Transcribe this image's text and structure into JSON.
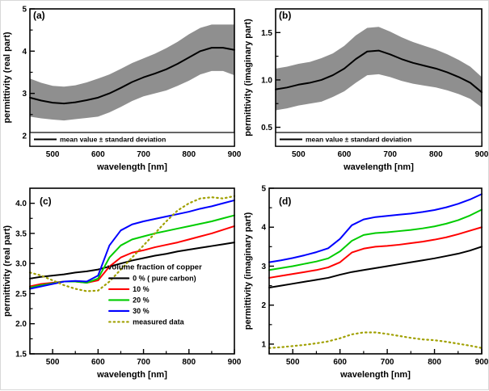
{
  "figure": {
    "background": "#ffffff",
    "band_color": "#8f8f8f",
    "axis_color": "#000000"
  },
  "chart_data": [
    {
      "id": "a",
      "type": "line",
      "panel_label": "(a)",
      "xlabel": "wavelength [nm]",
      "ylabel": "permittivity (real part)",
      "xlim": [
        450,
        900
      ],
      "ylim": [
        1.75,
        5.0
      ],
      "xticks": [
        {
          "v": 500,
          "l": "500"
        },
        {
          "v": 600,
          "l": "600"
        },
        {
          "v": 700,
          "l": "700"
        },
        {
          "v": 800,
          "l": "800"
        },
        {
          "v": 900,
          "l": "900"
        }
      ],
      "xminor": [
        450,
        550,
        650,
        750,
        850
      ],
      "yticks": [
        {
          "v": 2,
          "l": "2"
        },
        {
          "v": 3,
          "l": "3"
        },
        {
          "v": 4,
          "l": "4"
        },
        {
          "v": 5,
          "l": "5"
        }
      ],
      "yminor": [
        2.5,
        3.5,
        4.5
      ],
      "x": [
        450,
        475,
        500,
        525,
        550,
        575,
        600,
        625,
        650,
        675,
        700,
        725,
        750,
        775,
        800,
        825,
        850,
        875,
        900
      ],
      "band": {
        "mean": [
          2.9,
          2.83,
          2.78,
          2.76,
          2.79,
          2.84,
          2.9,
          3.0,
          3.13,
          3.27,
          3.38,
          3.47,
          3.57,
          3.7,
          3.85,
          4.0,
          4.08,
          4.08,
          4.03
        ],
        "sd": [
          0.45,
          0.42,
          0.4,
          0.4,
          0.4,
          0.42,
          0.45,
          0.45,
          0.45,
          0.45,
          0.45,
          0.47,
          0.5,
          0.52,
          0.55,
          0.55,
          0.55,
          0.55,
          0.6
        ],
        "color": "#8f8f8f"
      },
      "series": [
        {
          "name": "mean value",
          "color": "#000000",
          "width": 2,
          "dash": null,
          "values": [
            2.9,
            2.83,
            2.78,
            2.76,
            2.79,
            2.84,
            2.9,
            3.0,
            3.13,
            3.27,
            3.38,
            3.47,
            3.57,
            3.7,
            3.85,
            4.0,
            4.08,
            4.08,
            4.03
          ]
        }
      ],
      "legend": {
        "style": "boxed",
        "entries": [
          {
            "label": "mean value ± standard deviation",
            "color": "#000000",
            "dash": null
          }
        ]
      }
    },
    {
      "id": "b",
      "type": "line",
      "panel_label": "(b)",
      "xlabel": "wavelength [nm]",
      "ylabel": "permittivity (imaginary part)",
      "xlim": [
        450,
        900
      ],
      "ylim": [
        0.3,
        1.75
      ],
      "xticks": [
        {
          "v": 500,
          "l": "500"
        },
        {
          "v": 600,
          "l": "600"
        },
        {
          "v": 700,
          "l": "700"
        },
        {
          "v": 800,
          "l": "800"
        },
        {
          "v": 900,
          "l": "900"
        }
      ],
      "xminor": [
        450,
        550,
        650,
        750,
        850
      ],
      "yticks": [
        {
          "v": 0.5,
          "l": "0.5"
        },
        {
          "v": 1.0,
          "l": "1.0"
        },
        {
          "v": 1.5,
          "l": "1.5"
        }
      ],
      "yminor": [
        0.75,
        1.25
      ],
      "x": [
        450,
        475,
        500,
        525,
        550,
        575,
        600,
        625,
        650,
        675,
        700,
        725,
        750,
        775,
        800,
        825,
        850,
        875,
        900
      ],
      "band": {
        "mean": [
          0.9,
          0.92,
          0.95,
          0.97,
          1.0,
          1.05,
          1.12,
          1.22,
          1.3,
          1.31,
          1.27,
          1.22,
          1.18,
          1.15,
          1.12,
          1.08,
          1.03,
          0.97,
          0.87
        ],
        "sd": [
          0.22,
          0.22,
          0.22,
          0.22,
          0.23,
          0.23,
          0.24,
          0.25,
          0.25,
          0.25,
          0.24,
          0.23,
          0.22,
          0.21,
          0.2,
          0.19,
          0.18,
          0.17,
          0.16
        ],
        "color": "#8f8f8f"
      },
      "series": [
        {
          "name": "mean value",
          "color": "#000000",
          "width": 2,
          "dash": null,
          "values": [
            0.9,
            0.92,
            0.95,
            0.97,
            1.0,
            1.05,
            1.12,
            1.22,
            1.3,
            1.31,
            1.27,
            1.22,
            1.18,
            1.15,
            1.12,
            1.08,
            1.03,
            0.97,
            0.87
          ]
        }
      ],
      "legend": {
        "style": "boxed",
        "entries": [
          {
            "label": "mean value ± standard deviation",
            "color": "#000000",
            "dash": null
          }
        ]
      }
    },
    {
      "id": "c",
      "type": "line",
      "panel_label": "(c)",
      "xlabel": "wavelength [nm]",
      "ylabel": "permittivity (real part)",
      "xlim": [
        450,
        900
      ],
      "ylim": [
        1.5,
        4.25
      ],
      "xticks": [
        {
          "v": 500,
          "l": "500"
        },
        {
          "v": 600,
          "l": "600"
        },
        {
          "v": 700,
          "l": "700"
        },
        {
          "v": 800,
          "l": "800"
        },
        {
          "v": 900,
          "l": "900"
        }
      ],
      "xminor": [
        450,
        550,
        650,
        750,
        850
      ],
      "yticks": [
        {
          "v": 1.5,
          "l": "1.5"
        },
        {
          "v": 2.0,
          "l": "2.0"
        },
        {
          "v": 2.5,
          "l": "2.5"
        },
        {
          "v": 3.0,
          "l": "3.0"
        },
        {
          "v": 3.5,
          "l": "3.5"
        },
        {
          "v": 4.0,
          "l": "4.0"
        }
      ],
      "yminor": [
        1.75,
        2.25,
        2.75,
        3.25,
        3.75
      ],
      "x": [
        450,
        475,
        500,
        525,
        550,
        575,
        600,
        625,
        650,
        675,
        700,
        725,
        750,
        775,
        800,
        825,
        850,
        875,
        900
      ],
      "band": null,
      "series": [
        {
          "name": "0 % ( pure carbon)",
          "color": "#000000",
          "width": 2,
          "dash": null,
          "values": [
            2.75,
            2.78,
            2.8,
            2.82,
            2.85,
            2.87,
            2.9,
            2.95,
            3.0,
            3.05,
            3.09,
            3.13,
            3.16,
            3.2,
            3.23,
            3.26,
            3.29,
            3.32,
            3.35
          ]
        },
        {
          "name": "10 %",
          "color": "#ff0000",
          "width": 2,
          "dash": null,
          "values": [
            2.62,
            2.66,
            2.68,
            2.7,
            2.7,
            2.68,
            2.72,
            2.95,
            3.1,
            3.18,
            3.22,
            3.27,
            3.31,
            3.35,
            3.4,
            3.45,
            3.5,
            3.56,
            3.62
          ]
        },
        {
          "name": "20 %",
          "color": "#00cc00",
          "width": 2,
          "dash": null,
          "values": [
            2.6,
            2.64,
            2.67,
            2.7,
            2.7,
            2.68,
            2.75,
            3.1,
            3.3,
            3.4,
            3.45,
            3.5,
            3.54,
            3.58,
            3.62,
            3.66,
            3.7,
            3.75,
            3.8
          ]
        },
        {
          "name": "30 %",
          "color": "#0000ff",
          "width": 2,
          "dash": null,
          "values": [
            2.58,
            2.62,
            2.66,
            2.7,
            2.71,
            2.7,
            2.8,
            3.3,
            3.55,
            3.65,
            3.7,
            3.74,
            3.78,
            3.82,
            3.86,
            3.91,
            3.95,
            4.0,
            4.05
          ]
        },
        {
          "name": "measured data",
          "color": "#a0a000",
          "width": 2.2,
          "dash": "dot",
          "values": [
            2.85,
            2.8,
            2.72,
            2.64,
            2.58,
            2.54,
            2.55,
            2.7,
            2.9,
            3.1,
            3.3,
            3.5,
            3.7,
            3.88,
            4.0,
            4.08,
            4.1,
            4.08,
            4.12
          ]
        }
      ],
      "legend": {
        "style": "list",
        "title": "volume fraction of copper",
        "entries": [
          {
            "label": "0 % ( pure carbon)",
            "color": "#000000",
            "dash": null
          },
          {
            "label": "10 %",
            "color": "#ff0000",
            "dash": null
          },
          {
            "label": "20 %",
            "color": "#00cc00",
            "dash": null
          },
          {
            "label": "30 %",
            "color": "#0000ff",
            "dash": null
          },
          {
            "label": "measured data",
            "color": "#a0a000",
            "dash": "dot"
          }
        ]
      }
    },
    {
      "id": "d",
      "type": "line",
      "panel_label": "(d)",
      "xlabel": "wavelength [nm]",
      "ylabel": "permittivity (imaginary part)",
      "xlim": [
        450,
        900
      ],
      "ylim": [
        0.75,
        5.0
      ],
      "xticks": [
        {
          "v": 500,
          "l": "500"
        },
        {
          "v": 600,
          "l": "600"
        },
        {
          "v": 700,
          "l": "700"
        },
        {
          "v": 800,
          "l": "800"
        },
        {
          "v": 900,
          "l": "900"
        }
      ],
      "xminor": [
        450,
        550,
        650,
        750,
        850
      ],
      "yticks": [
        {
          "v": 1,
          "l": "1"
        },
        {
          "v": 2,
          "l": "2"
        },
        {
          "v": 3,
          "l": "3"
        },
        {
          "v": 4,
          "l": "4"
        },
        {
          "v": 5,
          "l": "5"
        }
      ],
      "yminor": [
        1.5,
        2.5,
        3.5,
        4.5
      ],
      "x": [
        450,
        475,
        500,
        525,
        550,
        575,
        600,
        625,
        650,
        675,
        700,
        725,
        750,
        775,
        800,
        825,
        850,
        875,
        900
      ],
      "band": null,
      "series": [
        {
          "name": "0 % ( pure carbon)",
          "color": "#000000",
          "width": 2,
          "dash": null,
          "values": [
            2.45,
            2.5,
            2.55,
            2.6,
            2.65,
            2.7,
            2.78,
            2.85,
            2.9,
            2.95,
            3.0,
            3.05,
            3.1,
            3.15,
            3.2,
            3.26,
            3.32,
            3.4,
            3.5
          ]
        },
        {
          "name": "10 %",
          "color": "#ff0000",
          "width": 2,
          "dash": null,
          "values": [
            2.7,
            2.75,
            2.8,
            2.85,
            2.9,
            2.97,
            3.1,
            3.35,
            3.45,
            3.5,
            3.52,
            3.55,
            3.59,
            3.63,
            3.68,
            3.74,
            3.82,
            3.91,
            4.0
          ]
        },
        {
          "name": "20 %",
          "color": "#00cc00",
          "width": 2,
          "dash": null,
          "values": [
            2.9,
            2.95,
            3.0,
            3.06,
            3.12,
            3.2,
            3.38,
            3.65,
            3.8,
            3.85,
            3.87,
            3.9,
            3.93,
            3.97,
            4.02,
            4.09,
            4.18,
            4.3,
            4.45
          ]
        },
        {
          "name": "30 %",
          "color": "#0000ff",
          "width": 2,
          "dash": null,
          "values": [
            3.1,
            3.15,
            3.21,
            3.28,
            3.36,
            3.46,
            3.7,
            4.05,
            4.2,
            4.26,
            4.29,
            4.32,
            4.35,
            4.39,
            4.44,
            4.51,
            4.6,
            4.71,
            4.85
          ]
        },
        {
          "name": "measured data",
          "color": "#a0a000",
          "width": 2.2,
          "dash": "dot",
          "values": [
            0.9,
            0.92,
            0.95,
            0.98,
            1.02,
            1.07,
            1.15,
            1.25,
            1.3,
            1.3,
            1.26,
            1.21,
            1.16,
            1.12,
            1.1,
            1.06,
            1.01,
            0.96,
            0.9
          ]
        }
      ],
      "legend": null
    }
  ]
}
